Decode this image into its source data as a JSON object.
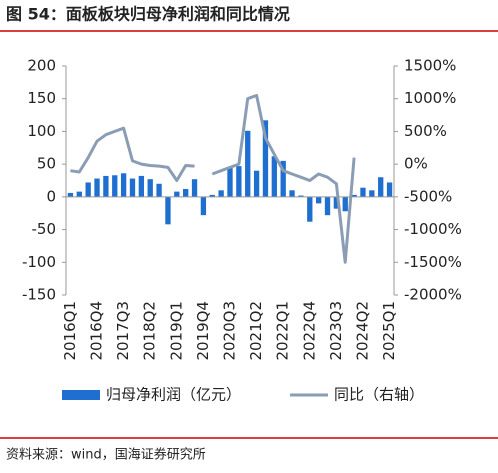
{
  "chart_data": {
    "type": "bar-line",
    "title": "图 54：面板板块归母净利润和同比情况",
    "source": "资料来源：wind，国海证券研究所",
    "categories": [
      "2016Q1",
      null,
      null,
      "2016Q4",
      null,
      null,
      "2017Q3",
      null,
      null,
      "2018Q2",
      null,
      null,
      "2019Q1",
      null,
      null,
      "2019Q4",
      null,
      null,
      "2020Q3",
      null,
      null,
      "2021Q2",
      null,
      null,
      "2022Q1",
      null,
      null,
      "2022Q4",
      null,
      null,
      "2023Q3",
      null,
      null,
      "2024Q2",
      null,
      null,
      "2025Q1"
    ],
    "series": [
      {
        "name": "归母净利润（亿元）",
        "color": "#1f6fd1",
        "axis": "y",
        "values": [
          6,
          8,
          22,
          28,
          32,
          33,
          36,
          28,
          32,
          27,
          20,
          -42,
          8,
          12,
          27,
          -28,
          3,
          10,
          44,
          47,
          101,
          40,
          117,
          62,
          55,
          10,
          2,
          -38,
          -10,
          -28,
          -18,
          -22,
          3,
          14,
          10,
          30,
          22
        ]
      },
      {
        "name": "同比（右轴）",
        "color": "#8a9db5",
        "axis": "y2",
        "values": [
          -100,
          -120,
          100,
          350,
          450,
          500,
          550,
          50,
          0,
          -20,
          -30,
          -50,
          -250,
          -20,
          -30,
          null,
          -150,
          -100,
          -50,
          0,
          1000,
          1050,
          400,
          150,
          -100,
          -150,
          -200,
          -250,
          -150,
          -200,
          -300,
          -1500,
          100,
          null,
          null,
          null,
          null
        ]
      }
    ],
    "ylim": [
      -150,
      200
    ],
    "yticks": [
      -150,
      -100,
      -50,
      0,
      50,
      100,
      150,
      200
    ],
    "y2lim": [
      -2000,
      1500
    ],
    "y2ticks": [
      {
        "value": -2000,
        "label": "-2000%"
      },
      {
        "value": -1500,
        "label": "-1500%"
      },
      {
        "value": -1000,
        "label": "-1000%"
      },
      {
        "value": -500,
        "label": "-500%"
      },
      {
        "value": 0,
        "label": "0%"
      },
      {
        "value": 500,
        "label": "500%"
      },
      {
        "value": 1000,
        "label": "1000%"
      },
      {
        "value": 1500,
        "label": "1500%"
      }
    ]
  }
}
